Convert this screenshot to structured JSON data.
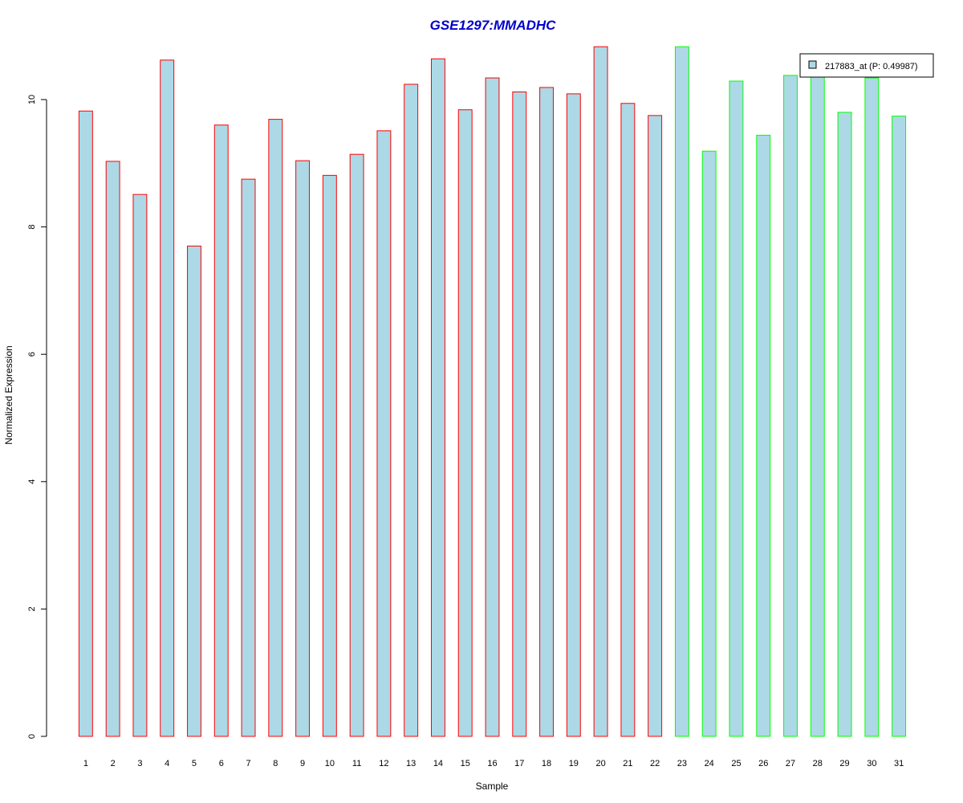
{
  "chart_data": {
    "type": "bar",
    "title": "GSE1297:MMADHC",
    "xlabel": "Sample",
    "ylabel": "Normalized Expression",
    "ylim": [
      0,
      10.8
    ],
    "yticks": [
      0,
      2,
      4,
      6,
      8,
      10
    ],
    "categories": [
      "1",
      "2",
      "3",
      "4",
      "5",
      "6",
      "7",
      "8",
      "9",
      "10",
      "11",
      "12",
      "13",
      "14",
      "15",
      "16",
      "17",
      "18",
      "19",
      "20",
      "21",
      "22",
      "23",
      "24",
      "25",
      "26",
      "27",
      "28",
      "29",
      "30",
      "31"
    ],
    "values": [
      9.82,
      9.03,
      8.51,
      10.62,
      7.7,
      9.6,
      8.75,
      9.69,
      9.04,
      8.81,
      9.14,
      9.51,
      10.24,
      10.64,
      9.84,
      10.34,
      10.12,
      10.19,
      10.09,
      10.83,
      9.94,
      9.75,
      10.83,
      9.19,
      10.29,
      9.44,
      10.38,
      10.38,
      9.8,
      10.34,
      9.74
    ],
    "groups": [
      "red",
      "red",
      "red",
      "red",
      "red",
      "red",
      "red",
      "red",
      "red",
      "red",
      "red",
      "red",
      "red",
      "red",
      "red",
      "red",
      "red",
      "red",
      "red",
      "red",
      "red",
      "red",
      "green",
      "green",
      "green",
      "green",
      "green",
      "green",
      "green",
      "green",
      "green"
    ],
    "series": [
      {
        "name": "217883_at (P: 0.49987)"
      }
    ],
    "legend_position": "top-right",
    "grid": false,
    "colors": {
      "fill": "#add8e6",
      "border_group_1": "#ff0000",
      "border_group_2": "#00ff00",
      "title": "#0000cd",
      "axis": "#000000"
    }
  }
}
